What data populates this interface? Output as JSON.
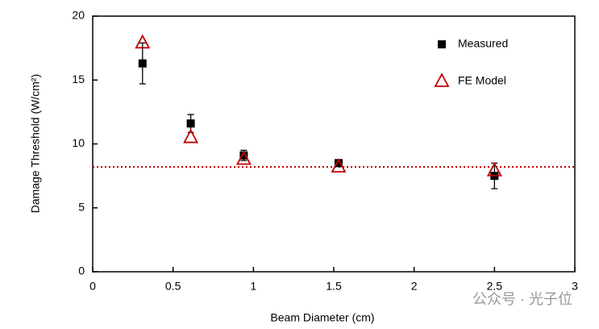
{
  "chart_data": {
    "type": "scatter",
    "x_label": "Beam Diameter (cm)",
    "y_label": "Damage Threshold (W/cm²)",
    "xlim": [
      0,
      3
    ],
    "xticks": [
      0,
      0.5,
      1,
      1.5,
      2,
      2.5,
      3
    ],
    "ylim": [
      0,
      20
    ],
    "yticks": [
      0,
      5,
      10,
      15,
      20
    ],
    "legend": "upper right",
    "series": [
      {
        "name": "Measured",
        "color": "#000000",
        "marker": "square",
        "x": [
          0.31,
          0.61,
          0.94,
          1.53,
          2.5
        ],
        "values": [
          16.3,
          11.6,
          9.1,
          8.5,
          7.5
        ],
        "errors": [
          1.6,
          0.7,
          0.4,
          0.2,
          1.0
        ]
      },
      {
        "name": "FE Model",
        "color": "#c00000",
        "marker": "triangle",
        "x": [
          0.31,
          0.61,
          0.94,
          1.53,
          2.5
        ],
        "values": [
          17.9,
          10.5,
          8.8,
          8.2,
          7.9
        ]
      }
    ],
    "hline": {
      "value": 8.2,
      "color": "#c00000"
    },
    "watermark": "公众号 · 光子位"
  }
}
